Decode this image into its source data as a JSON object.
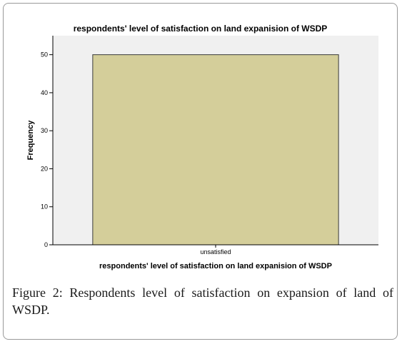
{
  "chart_data": {
    "type": "bar",
    "title": "respondents' level of satisfaction on land expanision of WSDP",
    "xlabel": "respondents' level of satisfaction on land expanision of WSDP",
    "ylabel": "Frequency",
    "categories": [
      "unsatisfied"
    ],
    "values": [
      50
    ],
    "ylim": [
      0,
      55
    ],
    "yticks": [
      "0",
      "10",
      "20",
      "30",
      "40",
      "50"
    ],
    "colors": {
      "bar": "#d4ce9a",
      "bar_stroke": "#3a3a3a",
      "plot_bg": "#f0f0f0"
    },
    "grid": false
  },
  "caption": {
    "label": "Figure 2:",
    "text": " Respondents level of satisfaction on expansion of land of WSDP."
  }
}
